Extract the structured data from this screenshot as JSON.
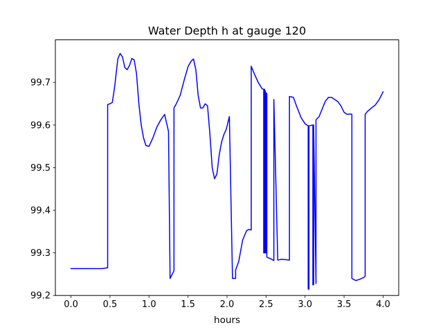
{
  "chart_data": {
    "type": "line",
    "title": "Water Depth h at gauge 120",
    "xlabel": "hours",
    "ylabel": "",
    "xlim": [
      -0.2,
      4.2
    ],
    "ylim": [
      99.2,
      99.8
    ],
    "xticks": [
      0.0,
      0.5,
      1.0,
      1.5,
      2.0,
      2.5,
      3.0,
      3.5,
      4.0
    ],
    "xtick_labels": [
      "0.0",
      "0.5",
      "1.0",
      "1.5",
      "2.0",
      "2.5",
      "3.0",
      "3.5",
      "4.0"
    ],
    "yticks": [
      99.2,
      99.3,
      99.4,
      99.5,
      99.6,
      99.7
    ],
    "ytick_labels": [
      "99.2",
      "99.3",
      "99.4",
      "99.5",
      "99.6",
      "99.7"
    ],
    "grid": false,
    "series": [
      {
        "color": "#0000ff",
        "x": [
          0.0,
          0.1,
          0.2,
          0.3,
          0.4,
          0.47,
          0.47,
          0.5,
          0.53,
          0.56,
          0.6,
          0.63,
          0.66,
          0.69,
          0.72,
          0.75,
          0.78,
          0.81,
          0.84,
          0.87,
          0.9,
          0.93,
          0.96,
          1.0,
          1.05,
          1.1,
          1.15,
          1.2,
          1.25,
          1.27,
          1.27,
          1.32,
          1.32,
          1.35,
          1.4,
          1.45,
          1.5,
          1.54,
          1.57,
          1.6,
          1.63,
          1.66,
          1.69,
          1.72,
          1.75,
          1.78,
          1.81,
          1.84,
          1.87,
          1.9,
          1.93,
          1.96,
          1.99,
          2.03,
          2.07,
          2.11,
          2.11,
          2.15,
          2.2,
          2.25,
          2.28,
          2.31,
          2.31,
          2.35,
          2.4,
          2.45,
          2.47,
          2.47,
          2.48,
          2.48,
          2.49,
          2.49,
          2.5,
          2.5,
          2.51,
          2.51,
          2.56,
          2.6,
          2.6,
          2.65,
          2.7,
          2.76,
          2.8,
          2.8,
          2.85,
          2.9,
          2.95,
          3.0,
          3.04,
          3.04,
          3.05,
          3.05,
          3.1,
          3.1,
          3.11,
          3.11,
          3.14,
          3.14,
          3.18,
          3.22,
          3.26,
          3.3,
          3.34,
          3.38,
          3.42,
          3.46,
          3.5,
          3.54,
          3.58,
          3.6,
          3.6,
          3.62,
          3.65,
          3.7,
          3.75,
          3.77,
          3.77,
          3.8,
          3.85,
          3.9,
          3.95,
          4.0
        ],
        "y": [
          99.263,
          99.263,
          99.263,
          99.263,
          99.263,
          99.265,
          99.648,
          99.65,
          99.653,
          99.69,
          99.755,
          99.768,
          99.76,
          99.735,
          99.73,
          99.74,
          99.756,
          99.753,
          99.72,
          99.65,
          99.6,
          99.57,
          99.552,
          99.55,
          99.57,
          99.595,
          99.612,
          99.625,
          99.585,
          99.24,
          99.24,
          99.258,
          99.64,
          99.65,
          99.67,
          99.705,
          99.737,
          99.75,
          99.755,
          99.73,
          99.67,
          99.64,
          99.64,
          99.65,
          99.645,
          99.58,
          99.5,
          99.474,
          99.485,
          99.53,
          99.56,
          99.578,
          99.59,
          99.62,
          99.24,
          99.24,
          99.26,
          99.28,
          99.33,
          99.352,
          99.355,
          99.354,
          99.738,
          99.72,
          99.7,
          99.685,
          99.684,
          99.3,
          99.3,
          99.684,
          99.68,
          99.3,
          99.3,
          99.676,
          99.673,
          99.29,
          99.286,
          99.282,
          99.66,
          99.283,
          99.285,
          99.284,
          99.283,
          99.667,
          99.665,
          99.64,
          99.617,
          99.603,
          99.598,
          99.215,
          99.215,
          99.598,
          99.6,
          99.225,
          99.225,
          99.6,
          99.228,
          99.612,
          99.62,
          99.638,
          99.656,
          99.665,
          99.665,
          99.66,
          99.655,
          99.645,
          99.63,
          99.625,
          99.626,
          99.625,
          99.24,
          99.238,
          99.235,
          99.238,
          99.242,
          99.245,
          99.625,
          99.632,
          99.64,
          99.647,
          99.66,
          99.678
        ]
      }
    ]
  }
}
